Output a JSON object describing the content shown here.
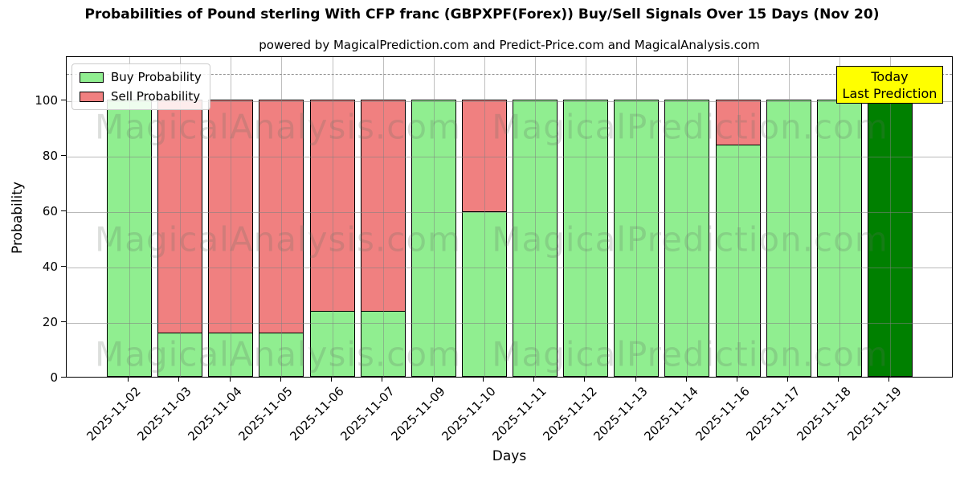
{
  "title": "Probabilities of Pound sterling With CFP franc (GBPXPF(Forex)) Buy/Sell Signals Over 15 Days (Nov 20)",
  "subtitle": "powered by MagicalPrediction.com and Predict-Price.com and MagicalAnalysis.com",
  "legend": {
    "items": [
      {
        "label": "Buy Probability",
        "color": "#90EE90"
      },
      {
        "label": "Sell Probability",
        "color": "#F08080"
      }
    ]
  },
  "annotation_box": {
    "line1": "Today",
    "line2": "Last Prediction",
    "bg_color": "#FFFF00",
    "border_color": "#000000"
  },
  "watermarks": {
    "left_text": "MagicalAnalysis.com",
    "right_text": "MagicalPrediction.com"
  },
  "chart_data": {
    "type": "bar",
    "stacked": true,
    "title": "Probabilities of Pound sterling With CFP franc (GBPXPF(Forex)) Buy/Sell Signals Over 15 Days (Nov 20)",
    "xlabel": "Days",
    "ylabel": "Probability",
    "categories": [
      "2025-11-02",
      "2025-11-03",
      "2025-11-04",
      "2025-11-05",
      "2025-11-06",
      "2025-11-07",
      "2025-11-09",
      "2025-11-10",
      "2025-11-11",
      "2025-11-12",
      "2025-11-13",
      "2025-11-14",
      "2025-11-16",
      "2025-11-17",
      "2025-11-18",
      "2025-11-19"
    ],
    "series": [
      {
        "name": "Buy Probability",
        "color": "#90EE90",
        "values": [
          100,
          16,
          16,
          16,
          24,
          24,
          100,
          60,
          100,
          100,
          100,
          100,
          84,
          100,
          100,
          100
        ]
      },
      {
        "name": "Sell Probability",
        "color": "#F08080",
        "values": [
          0,
          84,
          84,
          84,
          76,
          76,
          0,
          40,
          0,
          0,
          0,
          0,
          16,
          0,
          0,
          0
        ]
      }
    ],
    "last_bar": {
      "category": "2025-11-19",
      "color": "#008000",
      "note": "Today Last Prediction"
    },
    "bar_edge_color": "#000000",
    "yticks": [
      0,
      20,
      40,
      60,
      80,
      100
    ],
    "ylim": [
      0,
      116
    ],
    "dashed_guideline_y": 110,
    "grid": true,
    "legend_position": "upper left"
  }
}
